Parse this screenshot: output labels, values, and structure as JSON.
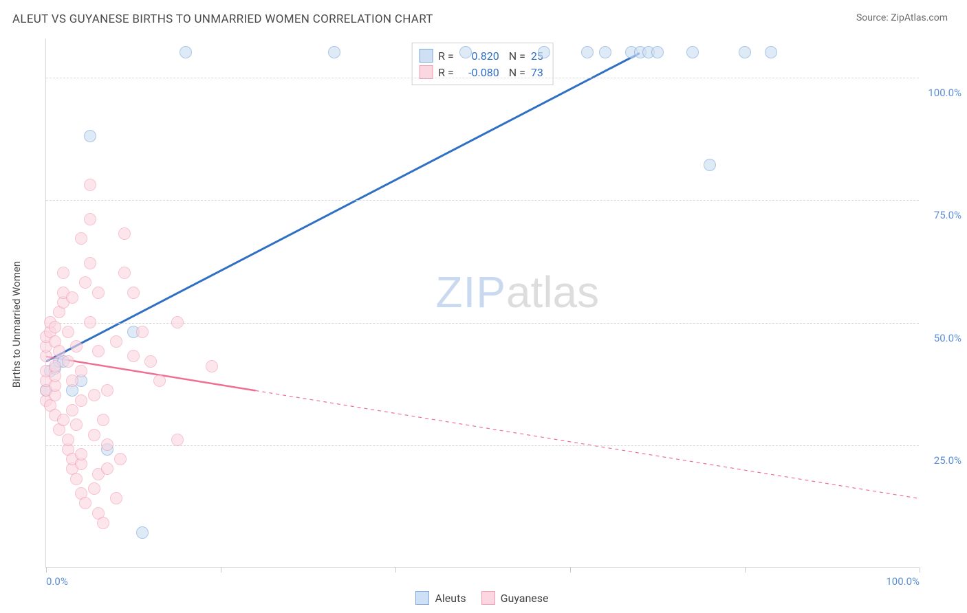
{
  "title": "ALEUT VS GUYANESE BIRTHS TO UNMARRIED WOMEN CORRELATION CHART",
  "source": "Source: ZipAtlas.com",
  "ylabel": "Births to Unmarried Women",
  "watermark": {
    "part1": "ZIP",
    "part2": "atlas"
  },
  "chart": {
    "type": "scatter",
    "xlim": [
      0,
      100
    ],
    "ylim": [
      0,
      108
    ],
    "background_color": "#ffffff",
    "grid_color": "#d8d8d8",
    "grid_dash": "4 4",
    "y_gridlines": [
      25,
      50,
      75,
      100
    ],
    "y_tick_labels": [
      "25.0%",
      "50.0%",
      "75.0%",
      "100.0%"
    ],
    "x_ticks": [
      0,
      20,
      40,
      60,
      80,
      100
    ],
    "x_tick_labels_shown": {
      "0": "0.0%",
      "100": "100.0%"
    },
    "point_radius": 9,
    "point_stroke_width": 1.2,
    "series": [
      {
        "name": "Aleuts",
        "fill": "#cfe0f4",
        "stroke": "#7ba7db",
        "fill_opacity": 0.65,
        "points": [
          [
            0,
            36
          ],
          [
            0.5,
            40
          ],
          [
            1,
            40.5
          ],
          [
            1.5,
            42
          ],
          [
            2,
            42
          ],
          [
            3,
            36
          ],
          [
            4,
            38
          ],
          [
            5,
            88
          ],
          [
            7,
            24
          ],
          [
            10,
            48
          ],
          [
            11,
            7
          ],
          [
            16,
            105
          ],
          [
            33,
            105
          ],
          [
            48,
            105
          ],
          [
            57,
            105
          ],
          [
            62,
            105
          ],
          [
            64,
            105
          ],
          [
            67,
            105
          ],
          [
            68,
            105
          ],
          [
            69,
            105
          ],
          [
            74,
            105
          ],
          [
            76,
            82
          ],
          [
            80,
            105
          ],
          [
            83,
            105
          ],
          [
            70,
            105
          ]
        ],
        "trend": {
          "x1": 0,
          "y1": 42,
          "x2": 68,
          "y2": 105,
          "color": "#2f6fc4",
          "width": 3,
          "dash_from_x": null
        }
      },
      {
        "name": "Guyanese",
        "fill": "#fbd7e1",
        "stroke": "#f19ab2",
        "fill_opacity": 0.6,
        "points": [
          [
            0,
            34
          ],
          [
            0,
            36
          ],
          [
            0,
            38
          ],
          [
            0,
            40
          ],
          [
            0,
            43
          ],
          [
            0,
            45
          ],
          [
            0,
            47
          ],
          [
            0.5,
            48
          ],
          [
            0.5,
            50
          ],
          [
            0.5,
            33
          ],
          [
            1,
            31
          ],
          [
            1,
            35
          ],
          [
            1,
            37
          ],
          [
            1,
            39
          ],
          [
            1,
            41
          ],
          [
            1,
            46
          ],
          [
            1,
            49
          ],
          [
            1.5,
            28
          ],
          [
            1.5,
            44
          ],
          [
            1.5,
            52
          ],
          [
            2,
            30
          ],
          [
            2,
            54
          ],
          [
            2,
            56
          ],
          [
            2,
            60
          ],
          [
            2.5,
            24
          ],
          [
            2.5,
            26
          ],
          [
            2.5,
            42
          ],
          [
            2.5,
            48
          ],
          [
            3,
            20
          ],
          [
            3,
            22
          ],
          [
            3,
            32
          ],
          [
            3,
            38
          ],
          [
            3,
            55
          ],
          [
            3.5,
            18
          ],
          [
            3.5,
            29
          ],
          [
            3.5,
            45
          ],
          [
            4,
            15
          ],
          [
            4,
            21
          ],
          [
            4,
            23
          ],
          [
            4,
            34
          ],
          [
            4,
            40
          ],
          [
            4,
            67
          ],
          [
            4.5,
            13
          ],
          [
            4.5,
            58
          ],
          [
            5,
            50
          ],
          [
            5,
            62
          ],
          [
            5,
            71
          ],
          [
            5,
            78
          ],
          [
            5.5,
            16
          ],
          [
            5.5,
            27
          ],
          [
            5.5,
            35
          ],
          [
            6,
            11
          ],
          [
            6,
            19
          ],
          [
            6,
            44
          ],
          [
            6,
            56
          ],
          [
            6.5,
            9
          ],
          [
            6.5,
            30
          ],
          [
            7,
            25
          ],
          [
            7,
            36
          ],
          [
            7,
            20
          ],
          [
            8,
            46
          ],
          [
            8,
            14
          ],
          [
            8.5,
            22
          ],
          [
            9,
            68
          ],
          [
            9,
            60
          ],
          [
            10,
            56
          ],
          [
            10,
            43
          ],
          [
            11,
            48
          ],
          [
            12,
            42
          ],
          [
            13,
            38
          ],
          [
            15,
            50
          ],
          [
            15,
            26
          ],
          [
            19,
            41
          ]
        ],
        "trend": {
          "x1": 0,
          "y1": 43,
          "x2": 100,
          "y2": 14,
          "color": "#ef6f93",
          "width": 2.5,
          "dash_from_x": 24
        }
      }
    ],
    "legend_top": [
      {
        "swatch_fill": "#cfe0f4",
        "swatch_stroke": "#7ba7db",
        "r_label": "R =",
        "r_value": "0.820",
        "n_label": "N =",
        "n_value": "25",
        "value_color": "#2f6fc4"
      },
      {
        "swatch_fill": "#fbd7e1",
        "swatch_stroke": "#f19ab2",
        "r_label": "R =",
        "r_value": "-0.080",
        "n_label": "N =",
        "n_value": "73",
        "value_color": "#2f6fc4"
      }
    ],
    "legend_bottom": [
      {
        "swatch_fill": "#cfe0f4",
        "swatch_stroke": "#7ba7db",
        "label": "Aleuts"
      },
      {
        "swatch_fill": "#fbd7e1",
        "swatch_stroke": "#f19ab2",
        "label": "Guyanese"
      }
    ]
  }
}
